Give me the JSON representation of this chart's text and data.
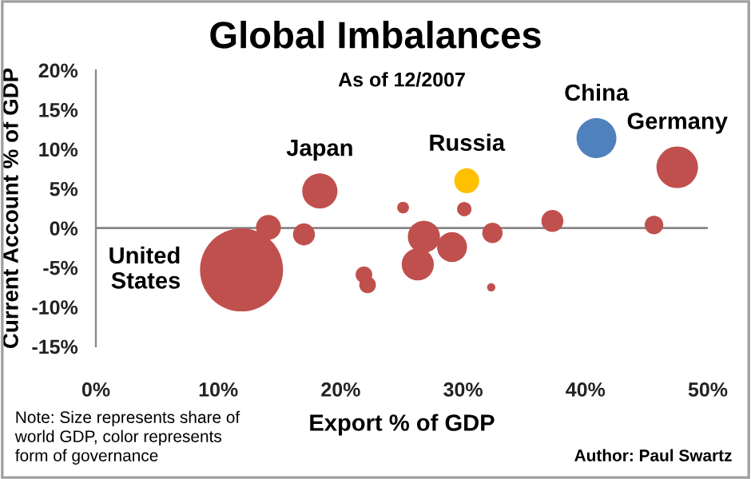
{
  "chart_data": {
    "type": "bubble",
    "title": "Global Imbalances",
    "subtitle": "As of 12/2007",
    "xlabel": "Export % of GDP",
    "ylabel": "Current Account % of GDP",
    "series": [
      {
        "x": [
          14.1,
          17.0,
          25.1,
          30.1,
          37.3,
          45.6,
          32.4,
          26.8,
          29.1,
          26.3,
          21.9,
          22.2,
          32.3,
          18.3,
          30.3,
          40.9,
          47.5,
          11.9
        ],
        "values": [
          0.1,
          -0.8,
          2.6,
          2.4,
          0.9,
          0.4,
          -0.6,
          -1.1,
          -2.4,
          -4.6,
          -5.9,
          -7.2,
          -7.5,
          4.7,
          6.0,
          11.4,
          7.7,
          -5.3
        ],
        "sizes": [
          0.09,
          0.07,
          0.02,
          0.03,
          0.07,
          0.05,
          0.06,
          0.15,
          0.13,
          0.15,
          0.04,
          0.04,
          0.01,
          0.18,
          0.09,
          0.23,
          0.25,
          1
        ],
        "colors": [
          "#c0504d",
          "#c0504d",
          "#c0504d",
          "#c0504d",
          "#c0504d",
          "#c0504d",
          "#c0504d",
          "#c0504d",
          "#c0504d",
          "#c0504d",
          "#c0504d",
          "#c0504d",
          "#c0504d",
          "#c0504d",
          "#ffc000",
          "#4f81bd",
          "#c0504d",
          "#c0504d"
        ]
      }
    ],
    "xlim": [
      0,
      50
    ],
    "ylim": [
      -15,
      20
    ],
    "xticks": [
      {
        "value": 0,
        "label": "0%"
      },
      {
        "value": 10,
        "label": "10%"
      },
      {
        "value": 20,
        "label": "20%"
      },
      {
        "value": 30,
        "label": "30%"
      },
      {
        "value": 40,
        "label": "40%"
      },
      {
        "value": 50,
        "label": "50%"
      }
    ],
    "yticks": [
      {
        "value": -15,
        "label": "-15%"
      },
      {
        "value": -10,
        "label": "-10%"
      },
      {
        "value": -5,
        "label": "-5%"
      },
      {
        "value": 0,
        "label": "0%"
      },
      {
        "value": 5,
        "label": "5%"
      },
      {
        "value": 10,
        "label": "10%"
      },
      {
        "value": 15,
        "label": "15%"
      },
      {
        "value": 20,
        "label": "20%"
      }
    ],
    "ref_lines": [
      {
        "axis": "y",
        "value": 0,
        "color": "#868686"
      }
    ],
    "annotations": [
      {
        "text": "United\nStates",
        "x": 11.9,
        "y": -5.3
      },
      {
        "text": "Japan",
        "x": 18.3,
        "y": 4.7
      },
      {
        "text": "Russia",
        "x": 30.3,
        "y": 6.0
      },
      {
        "text": "China",
        "x": 40.9,
        "y": 11.4
      },
      {
        "text": "Germany",
        "x": 47.5,
        "y": 7.7
      },
      "Note: Size represents share of\nworld GDP, color represents\nform of governance",
      "Author: Paul Swartz"
    ],
    "grid": false,
    "legend": false
  }
}
